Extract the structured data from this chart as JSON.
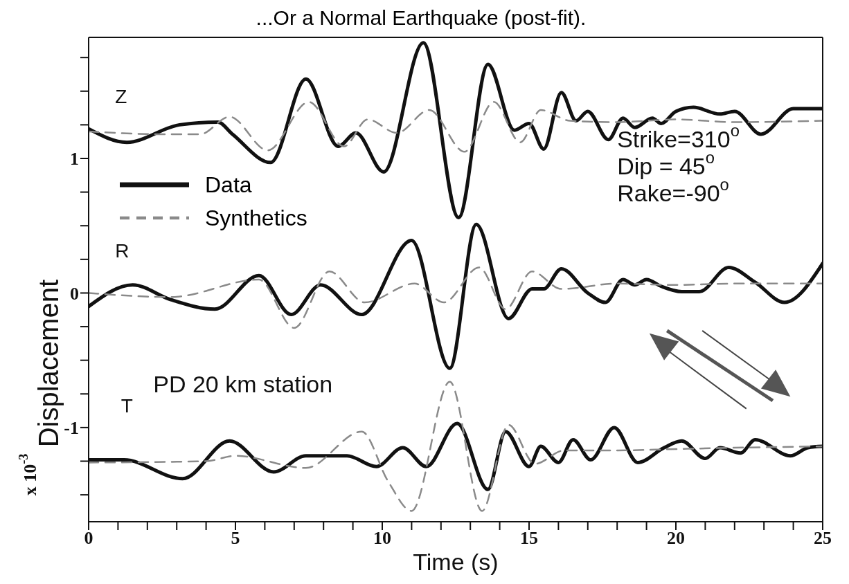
{
  "chart_data": {
    "type": "line",
    "title": "...Or a Normal Earthquake (post-fit).",
    "xlabel": "Time (s)",
    "ylabel": "Displacement",
    "xlim": [
      0,
      25
    ],
    "ylim": [
      -1.7,
      1.9
    ],
    "xticks": [
      0,
      {
        "value": 1,
        "label": null
      },
      {
        "value": 2,
        "label": null
      },
      {
        "value": 3,
        "label": null
      },
      {
        "value": 4,
        "label": null
      },
      5,
      {
        "value": 6,
        "label": null
      },
      {
        "value": 7,
        "label": null
      },
      {
        "value": 8,
        "label": null
      },
      {
        "value": 9,
        "label": null
      },
      10,
      {
        "value": 11,
        "label": null
      },
      {
        "value": 12,
        "label": null
      },
      {
        "value": 13,
        "label": null
      },
      {
        "value": 14,
        "label": null
      },
      15,
      {
        "value": 16,
        "label": null
      },
      {
        "value": 17,
        "label": null
      },
      {
        "value": 18,
        "label": null
      },
      {
        "value": 19,
        "label": null
      },
      20,
      {
        "value": 21,
        "label": null
      },
      {
        "value": 22,
        "label": null
      },
      {
        "value": 23,
        "label": null
      },
      {
        "value": 24,
        "label": null
      },
      25
    ],
    "yticks": [
      {
        "value": -1.5,
        "label": null
      },
      {
        "value": -1.25,
        "label": null
      },
      -1,
      {
        "value": -0.75,
        "label": null
      },
      {
        "value": -0.5,
        "label": null
      },
      {
        "value": -0.25,
        "label": null
      },
      0,
      {
        "value": 0.25,
        "label": null
      },
      {
        "value": 0.5,
        "label": null
      },
      {
        "value": 0.75,
        "label": null
      },
      1,
      {
        "value": 1.25,
        "label": null
      },
      {
        "value": 1.5,
        "label": null
      },
      {
        "value": 1.75,
        "label": null
      }
    ],
    "legend": "left",
    "series": [
      {
        "name": "Data",
        "color": "#111111",
        "line_style": "solid",
        "x": [
          0,
          1.3,
          3.1,
          4.4,
          4.9,
          6.2,
          7.4,
          8.5,
          9.1,
          10.05,
          11.4,
          12.6,
          13.6,
          14.5,
          15.0,
          15.5,
          16.1,
          16.6,
          17.0,
          17.7,
          18.2,
          18.6,
          19.2,
          19.5,
          20.0,
          20.6,
          21.5,
          22.0,
          22.9,
          24.0,
          25
        ],
        "values": [
          1.22,
          1.12,
          1.25,
          1.27,
          1.18,
          0.97,
          1.59,
          1.09,
          1.19,
          0.9,
          1.86,
          0.56,
          1.7,
          1.21,
          1.26,
          1.07,
          1.49,
          1.28,
          1.35,
          1.14,
          1.3,
          1.23,
          1.3,
          1.26,
          1.35,
          1.38,
          1.33,
          1.35,
          1.18,
          1.37,
          1.37
        ]
      },
      {
        "name": "Synthetics",
        "color": "#8a8a8a",
        "line_style": "dashed",
        "x": [
          0,
          2.6,
          3.8,
          4.8,
          6.1,
          7.5,
          8.7,
          9.5,
          10.5,
          11.6,
          12.8,
          13.8,
          14.7,
          15.4,
          16.4,
          18,
          20,
          22,
          25
        ],
        "values": [
          1.2,
          1.18,
          1.18,
          1.31,
          1.06,
          1.42,
          1.09,
          1.29,
          1.19,
          1.36,
          1.05,
          1.42,
          1.12,
          1.36,
          1.28,
          1.27,
          1.29,
          1.27,
          1.28
        ]
      },
      {
        "color": "#111111",
        "line_style": "solid",
        "x": [
          0,
          1.5,
          2.8,
          4.3,
          5.8,
          6.9,
          7.9,
          9.3,
          11.0,
          12.3,
          13.2,
          14.3,
          15.1,
          15.5,
          16.1,
          17.0,
          17.6,
          18.2,
          18.6,
          19.0,
          19.5,
          20.2,
          20.8,
          21.8,
          22.7,
          23.7,
          25
        ],
        "values": [
          -0.1,
          0.06,
          -0.05,
          -0.12,
          0.13,
          -0.16,
          0.06,
          -0.16,
          0.39,
          -0.56,
          0.51,
          -0.19,
          0.03,
          0.03,
          0.18,
          0.0,
          -0.07,
          0.1,
          0.06,
          0.1,
          0.05,
          0.01,
          0.01,
          0.19,
          0.08,
          -0.07,
          0.22
        ]
      },
      {
        "color": "#8a8a8a",
        "line_style": "dashed",
        "x": [
          0,
          2.8,
          5.8,
          7.0,
          8.2,
          9.4,
          11.1,
          12.1,
          13.3,
          14.2,
          15.1,
          16.1,
          18,
          20,
          22,
          25
        ],
        "values": [
          0.0,
          -0.03,
          0.1,
          -0.26,
          0.16,
          -0.07,
          0.07,
          -0.07,
          0.19,
          -0.12,
          0.16,
          0.03,
          0.07,
          0.06,
          0.07,
          0.07
        ]
      },
      {
        "color": "#111111",
        "line_style": "solid",
        "x": [
          0,
          1.2,
          3.2,
          4.8,
          6.3,
          7.4,
          8.8,
          9.8,
          10.7,
          11.5,
          12.55,
          13.6,
          14.2,
          15.0,
          15.4,
          16.0,
          16.5,
          17.1,
          17.9,
          18.7,
          19.6,
          20.2,
          21.0,
          21.5,
          22.2,
          22.7,
          23.9,
          24.5,
          25
        ],
        "values": [
          -1.24,
          -1.24,
          -1.38,
          -1.1,
          -1.33,
          -1.21,
          -1.21,
          -1.29,
          -1.15,
          -1.29,
          -0.97,
          -1.46,
          -1.03,
          -1.29,
          -1.14,
          -1.26,
          -1.09,
          -1.24,
          -1.0,
          -1.26,
          -1.15,
          -1.1,
          -1.23,
          -1.15,
          -1.19,
          -1.09,
          -1.21,
          -1.15,
          -1.14
        ]
      },
      {
        "color": "#8a8a8a",
        "line_style": "dashed",
        "x": [
          0,
          4,
          5,
          7.4,
          9.3,
          10.2,
          11.0,
          12.3,
          13.4,
          14.3,
          15.2,
          16.2,
          18,
          20,
          22,
          25
        ],
        "values": [
          -1.26,
          -1.25,
          -1.21,
          -1.3,
          -1.03,
          -1.4,
          -1.62,
          -0.66,
          -1.62,
          -0.98,
          -1.27,
          -1.17,
          -1.17,
          -1.16,
          -1.15,
          -1.14
        ]
      }
    ],
    "annotations": [
      "Z",
      "R",
      "T",
      "Strike=310$^{o}$",
      "Dip = 45$^{o}$",
      "Rake=-90$^{o}$",
      "PD 20 km station",
      "x 10$^{-3}$"
    ]
  }
}
